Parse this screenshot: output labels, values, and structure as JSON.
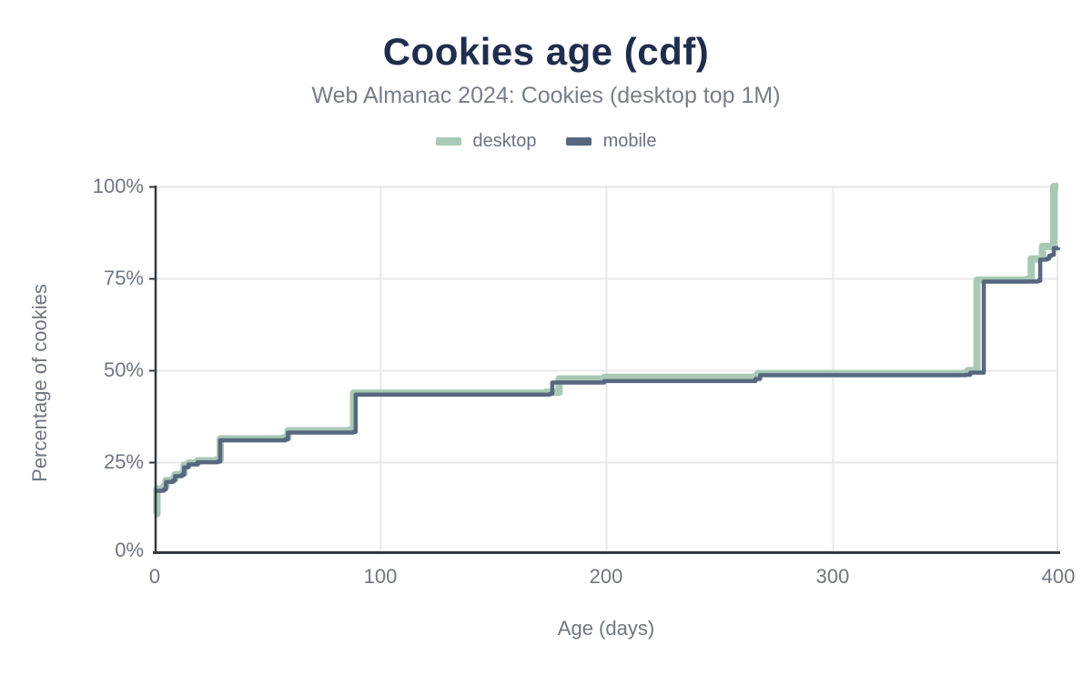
{
  "palette": {
    "background": "#ffffff",
    "title_color": "#1f2d4d",
    "subtitle_color": "#767e87",
    "tick_text_color": "#6e7680",
    "grid_color": "#e8e8e8",
    "axis_color": "#33383f"
  },
  "chart_data": {
    "type": "line",
    "subtype": "cdf-step",
    "title": "Cookies age (cdf)",
    "subtitle": "Web Almanac 2024: Cookies (desktop top 1M)",
    "xlabel": "Age (days)",
    "ylabel": "Percentage of cookies",
    "xlim": [
      0,
      400
    ],
    "ylim": [
      0,
      100
    ],
    "x_ticks": [
      "0",
      "100",
      "200",
      "300",
      "400"
    ],
    "y_ticks": [
      "100%",
      "75%",
      "50%",
      "25%",
      "0%"
    ],
    "grid": true,
    "legend_position": "top",
    "y_unit": "%",
    "series": [
      {
        "name": "desktop",
        "color": "#a8c9b5",
        "points": [
          [
            0,
            10.5
          ],
          [
            1,
            17.3
          ],
          [
            4,
            18
          ],
          [
            5,
            19.6
          ],
          [
            8,
            20
          ],
          [
            9,
            21.2
          ],
          [
            12,
            21.6
          ],
          [
            13,
            23.8
          ],
          [
            15,
            24.4
          ],
          [
            19,
            25
          ],
          [
            27,
            25.2
          ],
          [
            29,
            31
          ],
          [
            57,
            31.3
          ],
          [
            59,
            33.2
          ],
          [
            86,
            33.4
          ],
          [
            88,
            43.5
          ],
          [
            173,
            43.7
          ],
          [
            179,
            47.4
          ],
          [
            199,
            47.8
          ],
          [
            265,
            47.9
          ],
          [
            267,
            48.8
          ],
          [
            357,
            48.9
          ],
          [
            360,
            49.7
          ],
          [
            364,
            74.4
          ],
          [
            386,
            74.6
          ],
          [
            388,
            80.2
          ],
          [
            392,
            80.4
          ],
          [
            393,
            83.6
          ],
          [
            397,
            83.8
          ],
          [
            398,
            100
          ],
          [
            400,
            100
          ]
        ]
      },
      {
        "name": "mobile",
        "color": "#56677f",
        "points": [
          [
            0,
            16.8
          ],
          [
            4,
            17.2
          ],
          [
            5,
            19.2
          ],
          [
            8,
            19.6
          ],
          [
            9,
            20.8
          ],
          [
            12,
            21.2
          ],
          [
            13,
            23.2
          ],
          [
            15,
            24
          ],
          [
            19,
            24.6
          ],
          [
            28,
            24.8
          ],
          [
            29,
            30.6
          ],
          [
            58,
            30.9
          ],
          [
            59,
            32.7
          ],
          [
            88,
            32.9
          ],
          [
            89,
            43.1
          ],
          [
            175,
            43.3
          ],
          [
            176,
            46.4
          ],
          [
            199,
            46.8
          ],
          [
            266,
            47.4
          ],
          [
            268,
            48.4
          ],
          [
            359,
            48.5
          ],
          [
            361,
            49.1
          ],
          [
            367,
            74
          ],
          [
            391,
            74.2
          ],
          [
            392,
            80
          ],
          [
            395,
            80.3
          ],
          [
            396,
            81.1
          ],
          [
            397,
            81.3
          ],
          [
            398,
            83.1
          ],
          [
            400,
            83.3
          ]
        ]
      }
    ]
  }
}
